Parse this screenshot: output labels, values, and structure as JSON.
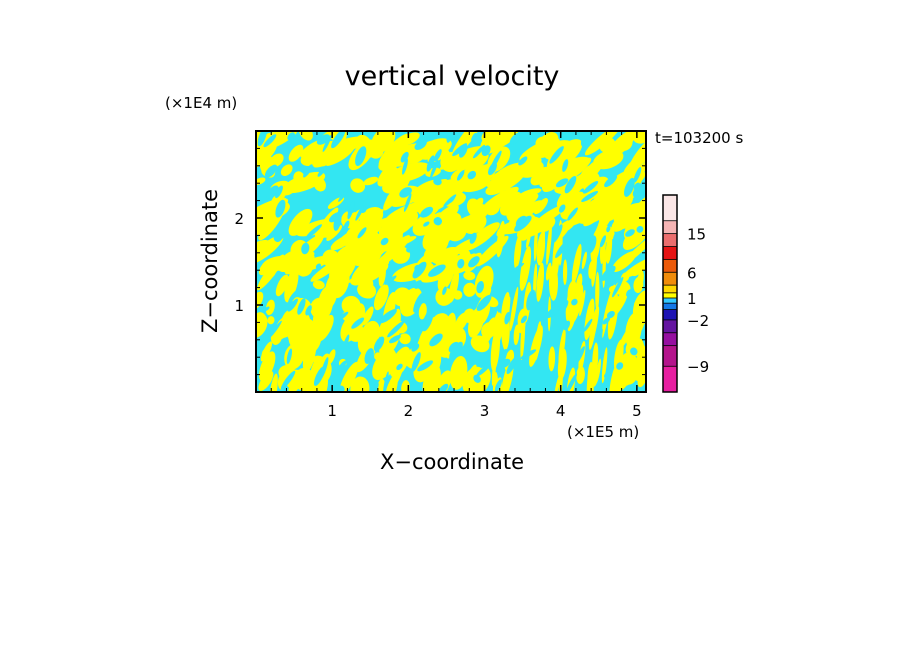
{
  "chart_data": {
    "type": "heatmap",
    "title": "vertical velocity",
    "xlabel": "X−coordinate",
    "ylabel": "Z−coordinate",
    "x_unit": "(×1E5 m)",
    "y_unit": "(×1E4 m)",
    "time_label": "t=103200 s",
    "xlim": [
      0,
      5.12
    ],
    "ylim": [
      0,
      3.0
    ],
    "x_ticks": [
      1,
      2,
      3,
      4,
      5
    ],
    "y_ticks": [
      1,
      2
    ],
    "x_tick_labels": [
      "1",
      "2",
      "3",
      "4",
      "5"
    ],
    "y_tick_labels": [
      "1",
      "2"
    ],
    "grid": false,
    "field_colors": {
      "negative": "#33e6f2",
      "positive": "#ffff00"
    },
    "colorbar": {
      "position": "right",
      "levels": [
        -12,
        -9,
        -6,
        -4,
        -2,
        -1,
        0,
        1,
        2,
        4,
        6,
        9,
        12,
        15,
        20
      ],
      "colors": [
        "#e61ea0",
        "#b4148c",
        "#960fa0",
        "#6414a0",
        "#1e14b4",
        "#1478e6",
        "#32c8ff",
        "#ffff00",
        "#ffd700",
        "#f08c0a",
        "#eb5a0a",
        "#e61414",
        "#eb6e6e",
        "#f5b4b4",
        "#fae6e6"
      ],
      "tick_labels": [
        {
          "label": "−9",
          "value": -9
        },
        {
          "label": "−2",
          "value": -2
        },
        {
          "label": "1",
          "value": 1
        },
        {
          "label": "6",
          "value": 6
        },
        {
          "label": "15",
          "value": 15
        }
      ]
    }
  }
}
